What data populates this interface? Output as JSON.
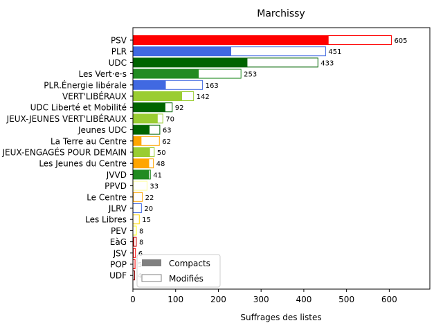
{
  "chart_data": {
    "type": "bar",
    "orientation": "horizontal",
    "stacked_overlay": true,
    "title": "Marchissy",
    "xlabel": "Suffrages des listes",
    "ylabel": "",
    "xlim": [
      0,
      695
    ],
    "xticks": [
      0,
      100,
      200,
      300,
      400,
      500,
      600
    ],
    "categories": [
      "PSV",
      "PLR",
      "UDC",
      "Les Vert·e·s",
      "PLR.Énergie libérale",
      "VERT'LIBÉRAUX",
      "UDC Liberté et Mobilité",
      "JEUX-JEUNES VERT'LIBÉRAUX",
      "Jeunes UDC",
      "La Terre au Centre",
      "JEUX-ENGAGÉS POUR DEMAIN",
      "Les Jeunes du Centre",
      "JVVD",
      "PPVD",
      "Le Centre",
      "JLRV",
      "Les Libres",
      "PEV",
      "EàG",
      "JSV",
      "POP",
      "UDF"
    ],
    "colors": [
      "#ff0000",
      "#4169e1",
      "#006400",
      "#228b22",
      "#4169e1",
      "#9acd32",
      "#006400",
      "#9acd32",
      "#006400",
      "#ffa500",
      "#9acd32",
      "#ffa500",
      "#228b22",
      "#ffff99",
      "#ffa500",
      "#4169e1",
      "#ffd700",
      "#ffff00",
      "#cc0000",
      "#ff0000",
      "#ff0000",
      "#8b0000"
    ],
    "series": [
      {
        "name": "Compacts",
        "values": [
          458,
          230,
          268,
          154,
          77,
          115,
          76,
          58,
          39,
          20,
          40,
          38,
          38,
          2,
          2,
          1,
          1,
          0,
          3,
          2,
          1,
          1
        ]
      },
      {
        "name": "Modifiés",
        "values": [
          605,
          451,
          433,
          253,
          163,
          142,
          92,
          70,
          63,
          62,
          50,
          48,
          41,
          33,
          22,
          20,
          15,
          8,
          8,
          6,
          5,
          4
        ]
      }
    ],
    "data_labels": [
      "605",
      "451",
      "433",
      "253",
      "163",
      "142",
      "92",
      "70",
      "63",
      "62",
      "50",
      "48",
      "41",
      "33",
      "22",
      "20",
      "15",
      "8",
      "8",
      "6",
      "5",
      "4"
    ],
    "legend": {
      "placement": "lower-left",
      "items": [
        "Compacts",
        "Modifiés"
      ],
      "compact_color": "#808080"
    }
  }
}
